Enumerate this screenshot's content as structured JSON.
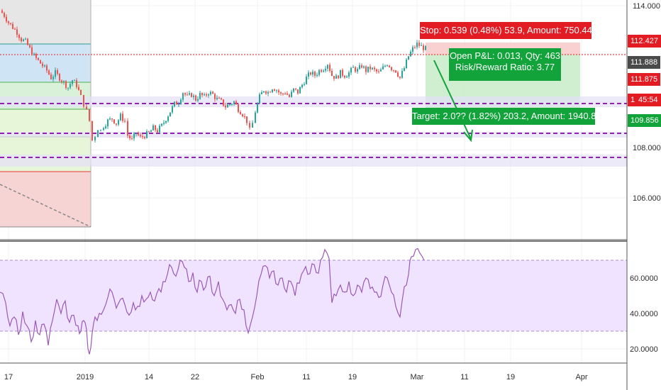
{
  "colors": {
    "up": "#26a69a",
    "down": "#ef5350",
    "rsi_line": "#9b59b6",
    "rsi_band": "#efe3ff",
    "stop_box": "#e31b23",
    "target_box": "#12a33a",
    "dash_line": "#8e24aa",
    "price_line": "#e31b23"
  },
  "trade": {
    "stop_label": "Stop: 0.539 (0.48%) 53.9, Amount: 750.44",
    "pnl_label": "Open P&L: 0.013, Qty: 463",
    "rr_label": "Risk/Reward Ratio: 3.77",
    "target_label": "Target: 2.0?? (1.82%) 203.2, Amount: 1940.82"
  },
  "price_axis": {
    "ticks": [
      "114.000",
      "108.000",
      "106.000"
    ],
    "tags": [
      {
        "label": "112.427",
        "color": "#e31b23"
      },
      {
        "label": "111.888",
        "color": "#4a4a4a"
      },
      {
        "label": "111.875",
        "color": "#e31b23"
      },
      {
        "label": "1",
        "color": "#e31b23"
      },
      {
        "label": "45:54",
        "color": "#e31b23"
      },
      {
        "label": "109.856",
        "color": "#12a33a"
      }
    ]
  },
  "rsi_axis": {
    "ticks": [
      "60.0000",
      "40.0000",
      "20.0000"
    ]
  },
  "time_axis": {
    "ticks": [
      "17",
      "2019",
      "14",
      "22",
      "Feb",
      "11",
      "19",
      "Mar",
      "11",
      "19",
      "Apr"
    ]
  },
  "chart_data": {
    "type": "candlestick",
    "price_ylim": [
      104.5,
      114.5
    ],
    "rsi_ylim": [
      15,
      80
    ],
    "rsi_levels": [
      70,
      30
    ],
    "close_path": [
      [
        0,
        113.8
      ],
      [
        6,
        113.6
      ],
      [
        12,
        113.3
      ],
      [
        18,
        113.1
      ],
      [
        24,
        112.9
      ],
      [
        30,
        112.6
      ],
      [
        36,
        112.5
      ],
      [
        42,
        112.2
      ],
      [
        48,
        111.9
      ],
      [
        54,
        111.7
      ],
      [
        60,
        111.5
      ],
      [
        66,
        111.3
      ],
      [
        72,
        111.0
      ],
      [
        78,
        111.2
      ],
      [
        84,
        111.0
      ],
      [
        90,
        110.8
      ],
      [
        96,
        110.6
      ],
      [
        102,
        110.9
      ],
      [
        108,
        110.7
      ],
      [
        114,
        110.2
      ],
      [
        118,
        109.9
      ],
      [
        122,
        109.6
      ],
      [
        126,
        109.2
      ],
      [
        130,
        108.4
      ],
      [
        134,
        108.6
      ],
      [
        138,
        108.9
      ],
      [
        142,
        108.8
      ],
      [
        146,
        109.0
      ],
      [
        152,
        109.2
      ],
      [
        158,
        109.3
      ],
      [
        164,
        109.1
      ],
      [
        170,
        109.4
      ],
      [
        176,
        109.2
      ],
      [
        180,
        108.6
      ],
      [
        186,
        108.4
      ],
      [
        192,
        108.7
      ],
      [
        198,
        108.5
      ],
      [
        204,
        108.6
      ],
      [
        210,
        108.7
      ],
      [
        216,
        108.9
      ],
      [
        222,
        108.8
      ],
      [
        228,
        109.0
      ],
      [
        234,
        109.3
      ],
      [
        240,
        109.6
      ],
      [
        246,
        109.9
      ],
      [
        252,
        110.0
      ],
      [
        258,
        110.4
      ],
      [
        264,
        110.2
      ],
      [
        270,
        110.3
      ],
      [
        276,
        110.1
      ],
      [
        282,
        110.3
      ],
      [
        288,
        110.2
      ],
      [
        294,
        110.4
      ],
      [
        300,
        110.3
      ],
      [
        306,
        110.1
      ],
      [
        312,
        110.0
      ],
      [
        318,
        109.8
      ],
      [
        324,
        109.9
      ],
      [
        330,
        110.0
      ],
      [
        336,
        109.7
      ],
      [
        342,
        109.5
      ],
      [
        348,
        109.2
      ],
      [
        352,
        108.8
      ],
      [
        356,
        109.1
      ],
      [
        360,
        109.6
      ],
      [
        366,
        110.2
      ],
      [
        372,
        110.5
      ],
      [
        378,
        110.4
      ],
      [
        384,
        110.6
      ],
      [
        390,
        110.5
      ],
      [
        396,
        110.3
      ],
      [
        402,
        110.4
      ],
      [
        408,
        110.2
      ],
      [
        414,
        110.5
      ],
      [
        420,
        110.4
      ],
      [
        426,
        110.7
      ],
      [
        432,
        111.0
      ],
      [
        438,
        111.2
      ],
      [
        444,
        111.1
      ],
      [
        450,
        111.3
      ],
      [
        456,
        111.4
      ],
      [
        462,
        111.6
      ],
      [
        468,
        111.1
      ],
      [
        474,
        111.0
      ],
      [
        480,
        111.2
      ],
      [
        486,
        111.1
      ],
      [
        492,
        111.2
      ],
      [
        498,
        111.4
      ],
      [
        504,
        111.3
      ],
      [
        510,
        111.5
      ],
      [
        516,
        111.3
      ],
      [
        522,
        111.4
      ],
      [
        528,
        111.3
      ],
      [
        534,
        111.2
      ],
      [
        540,
        111.4
      ],
      [
        546,
        111.6
      ],
      [
        552,
        111.4
      ],
      [
        558,
        111.3
      ],
      [
        564,
        111.0
      ],
      [
        570,
        111.4
      ],
      [
        576,
        111.9
      ],
      [
        582,
        112.2
      ],
      [
        588,
        112.4
      ],
      [
        594,
        112.3
      ],
      [
        600,
        112.2
      ]
    ],
    "rsi_path": [
      [
        0,
        52
      ],
      [
        8,
        46
      ],
      [
        14,
        33
      ],
      [
        20,
        38
      ],
      [
        26,
        28
      ],
      [
        32,
        41
      ],
      [
        38,
        33
      ],
      [
        44,
        24
      ],
      [
        50,
        36
      ],
      [
        56,
        28
      ],
      [
        62,
        34
      ],
      [
        68,
        22
      ],
      [
        74,
        36
      ],
      [
        80,
        48
      ],
      [
        86,
        40
      ],
      [
        92,
        47
      ],
      [
        98,
        35
      ],
      [
        104,
        39
      ],
      [
        110,
        33
      ],
      [
        114,
        30
      ],
      [
        118,
        36
      ],
      [
        122,
        31
      ],
      [
        126,
        17
      ],
      [
        130,
        29
      ],
      [
        134,
        38
      ],
      [
        140,
        40
      ],
      [
        146,
        42
      ],
      [
        152,
        49
      ],
      [
        158,
        52
      ],
      [
        164,
        43
      ],
      [
        170,
        48
      ],
      [
        176,
        45
      ],
      [
        182,
        39
      ],
      [
        188,
        46
      ],
      [
        194,
        44
      ],
      [
        200,
        50
      ],
      [
        206,
        48
      ],
      [
        212,
        52
      ],
      [
        218,
        47
      ],
      [
        224,
        54
      ],
      [
        230,
        58
      ],
      [
        236,
        62
      ],
      [
        242,
        66
      ],
      [
        248,
        61
      ],
      [
        254,
        70
      ],
      [
        260,
        66
      ],
      [
        266,
        58
      ],
      [
        272,
        63
      ],
      [
        278,
        52
      ],
      [
        284,
        58
      ],
      [
        290,
        55
      ],
      [
        296,
        61
      ],
      [
        302,
        50
      ],
      [
        308,
        58
      ],
      [
        314,
        48
      ],
      [
        320,
        42
      ],
      [
        326,
        45
      ],
      [
        332,
        40
      ],
      [
        338,
        48
      ],
      [
        344,
        42
      ],
      [
        350,
        29
      ],
      [
        356,
        38
      ],
      [
        362,
        50
      ],
      [
        368,
        62
      ],
      [
        374,
        67
      ],
      [
        380,
        60
      ],
      [
        386,
        64
      ],
      [
        392,
        56
      ],
      [
        398,
        60
      ],
      [
        404,
        52
      ],
      [
        410,
        58
      ],
      [
        416,
        50
      ],
      [
        422,
        57
      ],
      [
        428,
        64
      ],
      [
        434,
        62
      ],
      [
        440,
        68
      ],
      [
        446,
        63
      ],
      [
        452,
        70
      ],
      [
        458,
        76
      ],
      [
        464,
        71
      ],
      [
        468,
        46
      ],
      [
        474,
        50
      ],
      [
        480,
        56
      ],
      [
        486,
        52
      ],
      [
        492,
        58
      ],
      [
        498,
        50
      ],
      [
        504,
        56
      ],
      [
        510,
        52
      ],
      [
        516,
        60
      ],
      [
        522,
        54
      ],
      [
        528,
        52
      ],
      [
        534,
        49
      ],
      [
        540,
        56
      ],
      [
        546,
        60
      ],
      [
        552,
        52
      ],
      [
        558,
        44
      ],
      [
        564,
        38
      ],
      [
        570,
        55
      ],
      [
        576,
        62
      ],
      [
        580,
        72
      ],
      [
        586,
        76
      ],
      [
        592,
        74
      ],
      [
        598,
        70
      ]
    ]
  }
}
